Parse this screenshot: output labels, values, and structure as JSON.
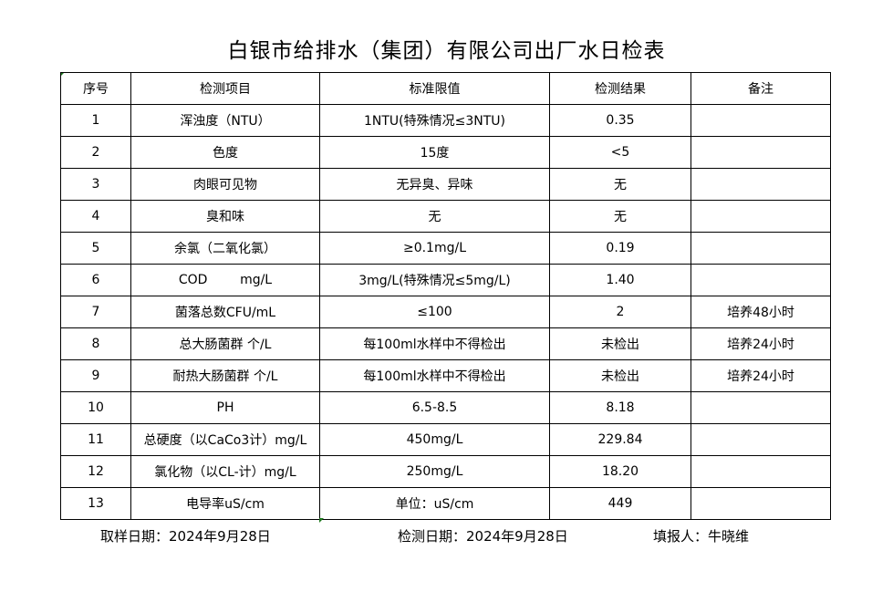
{
  "title": "白银市给排水（集团）有限公司出厂水日检表",
  "headers": [
    "序号",
    "检测项目",
    "标准限值",
    "检测结果",
    "备注"
  ],
  "rows": [
    [
      "1",
      "浑浊度（NTU）",
      "1NTU(特殊情况≤3NTU)",
      "0.35",
      ""
    ],
    [
      "2",
      "色度",
      "15度",
      "<5",
      ""
    ],
    [
      "3",
      "肉眼可见物",
      "无异臭、异味",
      "无",
      ""
    ],
    [
      "4",
      "臭和味",
      "无",
      "无",
      ""
    ],
    [
      "5",
      "余氯（二氧化氯）",
      "≥0.1mg/L",
      "0.19",
      ""
    ],
    [
      "6",
      "COD        mg/L",
      "3mg/L(特殊情况≤5mg/L)",
      "1.40",
      ""
    ],
    [
      "7",
      "菌落总数CFU/mL",
      "≤100",
      "2",
      "培养48小时"
    ],
    [
      "8",
      "总大肠菌群 个/L",
      "每100ml水样中不得检出",
      "未检出",
      "培养24小时"
    ],
    [
      "9",
      "耐热大肠菌群 个/L",
      "每100ml水样中不得检出",
      "未检出",
      "培养24小时"
    ],
    [
      "10",
      "PH",
      "6.5-8.5",
      "8.18",
      ""
    ],
    [
      "11",
      "总硬度（以CaCo3计）mg/L",
      "450mg/L",
      "229.84",
      ""
    ],
    [
      "12",
      "氯化物（以CL-计）mg/L",
      "250mg/L",
      "18.20",
      ""
    ],
    [
      "13",
      "电导率uS/cm",
      "单位：uS/cm",
      "449",
      ""
    ]
  ],
  "footer": {
    "sampling_date": "取样日期：2024年9月28日",
    "test_date": "检测日期：2024年9月28日",
    "reporter": "填报人：牛晓维"
  }
}
